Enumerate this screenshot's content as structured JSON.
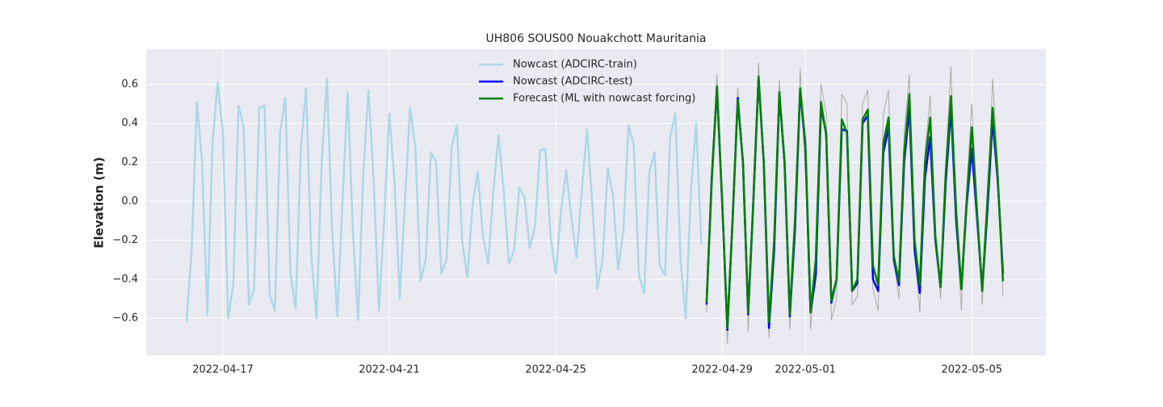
{
  "chart_data": {
    "type": "line",
    "title": "UH806 SOUS00 Nouakchott Mauritania",
    "y_label": "Elevation (m)",
    "xlim": [
      "2022-04-15T03:45",
      "2022-05-06T18:45"
    ],
    "xticks": [
      "2022-04-17",
      "2022-04-21",
      "2022-04-25",
      "2022-04-29",
      "2022-05-01",
      "2022-05-05"
    ],
    "ylim": [
      -0.79,
      0.78
    ],
    "yticks": [
      {
        "value": -0.6,
        "label": "−0.6"
      },
      {
        "value": -0.4,
        "label": "−0.4"
      },
      {
        "value": -0.2,
        "label": "−0.2"
      },
      {
        "value": 0,
        "label": "0.0"
      },
      {
        "value": 0.2,
        "label": "0.2"
      },
      {
        "value": 0.4,
        "label": "0.4"
      },
      {
        "value": 0.6,
        "label": "0.6"
      }
    ],
    "grid": true,
    "legend": "upper center",
    "series": [
      {
        "color": "#aaaaaa",
        "width": 1,
        "x": [
          "2022-04-28T15:00",
          "2022-04-28T18:00",
          "2022-04-28T21:00",
          "2022-04-29T00:00",
          "2022-04-29T03:00",
          "2022-04-29T06:00",
          "2022-04-29T09:00",
          "2022-04-29T12:00",
          "2022-04-29T15:00",
          "2022-04-29T18:00",
          "2022-04-29T21:00",
          "2022-04-30T00:00",
          "2022-04-30T03:00",
          "2022-04-30T06:00",
          "2022-04-30T09:00",
          "2022-04-30T12:00",
          "2022-04-30T15:00",
          "2022-04-30T18:00",
          "2022-04-30T21:00",
          "2022-05-01T00:00",
          "2022-05-01T03:00",
          "2022-05-01T06:00",
          "2022-05-01T09:00",
          "2022-05-01T12:00",
          "2022-05-01T15:00",
          "2022-05-01T18:00",
          "2022-05-01T21:00",
          "2022-05-02T00:00",
          "2022-05-02T03:00",
          "2022-05-02T06:00",
          "2022-05-02T09:00",
          "2022-05-02T12:00",
          "2022-05-02T15:00",
          "2022-05-02T18:00",
          "2022-05-02T21:00",
          "2022-05-03T00:00",
          "2022-05-03T03:00",
          "2022-05-03T06:00",
          "2022-05-03T09:00",
          "2022-05-03T12:00",
          "2022-05-03T15:00",
          "2022-05-03T18:00",
          "2022-05-03T21:00",
          "2022-05-04T00:00",
          "2022-05-04T03:00",
          "2022-05-04T06:00",
          "2022-05-04T09:00",
          "2022-05-04T12:00",
          "2022-05-04T15:00",
          "2022-05-04T18:00",
          "2022-05-04T21:00",
          "2022-05-05T00:00",
          "2022-05-05T03:00",
          "2022-05-05T06:00",
          "2022-05-05T09:00",
          "2022-05-05T12:00",
          "2022-05-05T15:00",
          "2022-05-05T18:00"
        ],
        "values": [
          -0.57,
          0.15,
          0.65,
          0.0,
          -0.73,
          -0.15,
          0.58,
          0.2,
          -0.67,
          0.1,
          0.71,
          0.2,
          -0.7,
          -0.15,
          0.62,
          0.15,
          -0.66,
          -0.2,
          0.68,
          0.15,
          -0.66,
          -0.3,
          0.6,
          0.45,
          -0.61,
          -0.5,
          0.55,
          0.5,
          -0.53,
          -0.49,
          0.5,
          0.57,
          -0.45,
          -0.56,
          0.45,
          0.57,
          -0.3,
          -0.5,
          0.35,
          0.65,
          -0.25,
          -0.57,
          0.25,
          0.54,
          -0.2,
          -0.5,
          0.2,
          0.69,
          -0.1,
          -0.56,
          0.05,
          0.5,
          0.0,
          -0.53,
          -0.1,
          0.63,
          0.2,
          -0.49
        ]
      },
      {
        "name": "Nowcast (ADCIRC-train)",
        "color": "#add8e6",
        "width": 2.5,
        "x": [
          "2022-04-16T03:00",
          "2022-04-16T06:00",
          "2022-04-16T09:00",
          "2022-04-16T12:00",
          "2022-04-16T15:00",
          "2022-04-16T18:00",
          "2022-04-16T21:00",
          "2022-04-17T00:00",
          "2022-04-17T03:00",
          "2022-04-17T06:00",
          "2022-04-17T09:00",
          "2022-04-17T12:00",
          "2022-04-17T15:00",
          "2022-04-17T18:00",
          "2022-04-17T21:00",
          "2022-04-18T00:00",
          "2022-04-18T03:00",
          "2022-04-18T06:00",
          "2022-04-18T09:00",
          "2022-04-18T12:00",
          "2022-04-18T15:00",
          "2022-04-18T18:00",
          "2022-04-18T21:00",
          "2022-04-19T00:00",
          "2022-04-19T03:00",
          "2022-04-19T06:00",
          "2022-04-19T09:00",
          "2022-04-19T12:00",
          "2022-04-19T15:00",
          "2022-04-19T18:00",
          "2022-04-19T21:00",
          "2022-04-20T00:00",
          "2022-04-20T03:00",
          "2022-04-20T06:00",
          "2022-04-20T09:00",
          "2022-04-20T12:00",
          "2022-04-20T15:00",
          "2022-04-20T18:00",
          "2022-04-20T21:00",
          "2022-04-21T00:00",
          "2022-04-21T03:00",
          "2022-04-21T06:00",
          "2022-04-21T09:00",
          "2022-04-21T12:00",
          "2022-04-21T15:00",
          "2022-04-21T18:00",
          "2022-04-21T21:00",
          "2022-04-22T00:00",
          "2022-04-22T03:00",
          "2022-04-22T06:00",
          "2022-04-22T09:00",
          "2022-04-22T12:00",
          "2022-04-22T15:00",
          "2022-04-22T18:00",
          "2022-04-22T21:00",
          "2022-04-23T00:00",
          "2022-04-23T03:00",
          "2022-04-23T06:00",
          "2022-04-23T09:00",
          "2022-04-23T12:00",
          "2022-04-23T15:00",
          "2022-04-23T18:00",
          "2022-04-23T21:00",
          "2022-04-24T00:00",
          "2022-04-24T03:00",
          "2022-04-24T06:00",
          "2022-04-24T09:00",
          "2022-04-24T12:00",
          "2022-04-24T15:00",
          "2022-04-24T18:00",
          "2022-04-24T21:00",
          "2022-04-25T00:00",
          "2022-04-25T03:00",
          "2022-04-25T06:00",
          "2022-04-25T09:00",
          "2022-04-25T12:00",
          "2022-04-25T15:00",
          "2022-04-25T18:00",
          "2022-04-25T21:00",
          "2022-04-26T00:00",
          "2022-04-26T03:00",
          "2022-04-26T06:00",
          "2022-04-26T09:00",
          "2022-04-26T12:00",
          "2022-04-26T15:00",
          "2022-04-26T18:00",
          "2022-04-26T21:00",
          "2022-04-27T00:00",
          "2022-04-27T03:00",
          "2022-04-27T06:00",
          "2022-04-27T09:00",
          "2022-04-27T12:00",
          "2022-04-27T15:00",
          "2022-04-27T18:00",
          "2022-04-27T21:00",
          "2022-04-28T00:00",
          "2022-04-28T03:00",
          "2022-04-28T06:00",
          "2022-04-28T09:00",
          "2022-04-28T12:00"
        ],
        "values": [
          -0.62,
          -0.25,
          0.51,
          0.2,
          -0.58,
          0.3,
          0.61,
          0.35,
          -0.6,
          -0.43,
          0.49,
          0.38,
          -0.53,
          -0.45,
          0.48,
          0.49,
          -0.48,
          -0.56,
          0.35,
          0.53,
          -0.37,
          -0.55,
          0.28,
          0.58,
          -0.28,
          -0.6,
          0.2,
          0.63,
          -0.15,
          -0.59,
          0.0,
          0.56,
          -0.15,
          -0.61,
          0.15,
          0.57,
          0.1,
          -0.56,
          -0.1,
          0.45,
          0.1,
          -0.5,
          0.0,
          0.48,
          0.28,
          -0.41,
          -0.3,
          0.25,
          0.2,
          -0.37,
          -0.3,
          0.28,
          0.39,
          -0.2,
          -0.39,
          -0.02,
          0.15,
          -0.18,
          -0.32,
          0.05,
          0.34,
          0.05,
          -0.32,
          -0.25,
          0.07,
          0.02,
          -0.24,
          -0.13,
          0.26,
          0.27,
          -0.18,
          -0.37,
          -0.06,
          0.16,
          -0.08,
          -0.29,
          0.05,
          0.37,
          0.0,
          -0.45,
          -0.3,
          0.17,
          0.03,
          -0.35,
          -0.15,
          0.39,
          0.29,
          -0.38,
          -0.47,
          0.15,
          0.25,
          -0.33,
          -0.38,
          0.33,
          0.45,
          -0.3,
          -0.6,
          0.05,
          0.4,
          -0.22
        ]
      },
      {
        "name": "Nowcast (ADCIRC-test)",
        "color": "#0000ff",
        "width": 2.5,
        "x": [
          "2022-04-28T15:00",
          "2022-04-28T18:00",
          "2022-04-28T21:00",
          "2022-04-29T00:00",
          "2022-04-29T03:00",
          "2022-04-29T06:00",
          "2022-04-29T09:00",
          "2022-04-29T12:00",
          "2022-04-29T15:00",
          "2022-04-29T18:00",
          "2022-04-29T21:00",
          "2022-04-30T00:00",
          "2022-04-30T03:00",
          "2022-04-30T06:00",
          "2022-04-30T09:00",
          "2022-04-30T12:00",
          "2022-04-30T15:00",
          "2022-04-30T18:00",
          "2022-04-30T21:00",
          "2022-05-01T00:00",
          "2022-05-01T03:00",
          "2022-05-01T06:00",
          "2022-05-01T09:00",
          "2022-05-01T12:00",
          "2022-05-01T15:00",
          "2022-05-01T18:00",
          "2022-05-01T21:00",
          "2022-05-02T00:00",
          "2022-05-02T03:00",
          "2022-05-02T06:00",
          "2022-05-02T09:00",
          "2022-05-02T12:00",
          "2022-05-02T15:00",
          "2022-05-02T18:00",
          "2022-05-02T21:00",
          "2022-05-03T00:00",
          "2022-05-03T03:00",
          "2022-05-03T06:00",
          "2022-05-03T09:00",
          "2022-05-03T12:00",
          "2022-05-03T15:00",
          "2022-05-03T18:00",
          "2022-05-03T21:00",
          "2022-05-04T00:00",
          "2022-05-04T03:00",
          "2022-05-04T06:00",
          "2022-05-04T09:00",
          "2022-05-04T12:00",
          "2022-05-04T15:00",
          "2022-05-04T18:00",
          "2022-05-04T21:00",
          "2022-05-05T00:00",
          "2022-05-05T03:00",
          "2022-05-05T06:00",
          "2022-05-05T09:00",
          "2022-05-05T12:00",
          "2022-05-05T15:00",
          "2022-05-05T18:00"
        ],
        "values": [
          -0.53,
          0.12,
          0.58,
          0.0,
          -0.66,
          -0.1,
          0.53,
          0.2,
          -0.58,
          0.0,
          0.63,
          0.2,
          -0.65,
          -0.25,
          0.55,
          0.2,
          -0.59,
          -0.15,
          0.57,
          0.28,
          -0.57,
          -0.38,
          0.48,
          0.35,
          -0.52,
          -0.4,
          0.37,
          0.36,
          -0.46,
          -0.42,
          0.4,
          0.44,
          -0.4,
          -0.46,
          0.25,
          0.38,
          -0.3,
          -0.43,
          0.2,
          0.48,
          -0.25,
          -0.47,
          0.12,
          0.33,
          -0.2,
          -0.44,
          0.1,
          0.48,
          -0.1,
          -0.45,
          -0.02,
          0.27,
          -0.08,
          -0.45,
          -0.05,
          0.42,
          0.1,
          -0.37
        ]
      },
      {
        "name": "Forecast (ML with nowcast forcing)",
        "color": "#008000",
        "width": 2.5,
        "x": [
          "2022-04-28T15:00",
          "2022-04-28T18:00",
          "2022-04-28T21:00",
          "2022-04-29T00:00",
          "2022-04-29T03:00",
          "2022-04-29T06:00",
          "2022-04-29T09:00",
          "2022-04-29T12:00",
          "2022-04-29T15:00",
          "2022-04-29T18:00",
          "2022-04-29T21:00",
          "2022-04-30T00:00",
          "2022-04-30T03:00",
          "2022-04-30T06:00",
          "2022-04-30T09:00",
          "2022-04-30T12:00",
          "2022-04-30T15:00",
          "2022-04-30T18:00",
          "2022-04-30T21:00",
          "2022-05-01T00:00",
          "2022-05-01T03:00",
          "2022-05-01T06:00",
          "2022-05-01T09:00",
          "2022-05-01T12:00",
          "2022-05-01T15:00",
          "2022-05-01T18:00",
          "2022-05-01T21:00",
          "2022-05-02T00:00",
          "2022-05-02T03:00",
          "2022-05-02T06:00",
          "2022-05-02T09:00",
          "2022-05-02T12:00",
          "2022-05-02T15:00",
          "2022-05-02T18:00",
          "2022-05-02T21:00",
          "2022-05-03T00:00",
          "2022-05-03T03:00",
          "2022-05-03T06:00",
          "2022-05-03T09:00",
          "2022-05-03T12:00",
          "2022-05-03T15:00",
          "2022-05-03T18:00",
          "2022-05-03T21:00",
          "2022-05-04T00:00",
          "2022-05-04T03:00",
          "2022-05-04T06:00",
          "2022-05-04T09:00",
          "2022-05-04T12:00",
          "2022-05-04T15:00",
          "2022-05-04T18:00",
          "2022-05-04T21:00",
          "2022-05-05T00:00",
          "2022-05-05T03:00",
          "2022-05-05T06:00",
          "2022-05-05T09:00",
          "2022-05-05T12:00",
          "2022-05-05T15:00",
          "2022-05-05T18:00"
        ],
        "values": [
          -0.52,
          0.1,
          0.59,
          0.0,
          -0.65,
          -0.1,
          0.52,
          0.2,
          -0.57,
          0.0,
          0.64,
          0.2,
          -0.62,
          -0.2,
          0.56,
          0.2,
          -0.58,
          -0.1,
          0.58,
          0.3,
          -0.57,
          -0.3,
          0.51,
          0.34,
          -0.51,
          -0.4,
          0.42,
          0.35,
          -0.46,
          -0.4,
          0.42,
          0.47,
          -0.33,
          -0.43,
          0.3,
          0.43,
          -0.28,
          -0.41,
          0.25,
          0.55,
          -0.2,
          -0.43,
          0.2,
          0.43,
          -0.18,
          -0.44,
          0.15,
          0.54,
          -0.05,
          -0.45,
          0.0,
          0.38,
          -0.05,
          -0.46,
          0.0,
          0.48,
          0.12,
          -0.41
        ]
      }
    ]
  }
}
